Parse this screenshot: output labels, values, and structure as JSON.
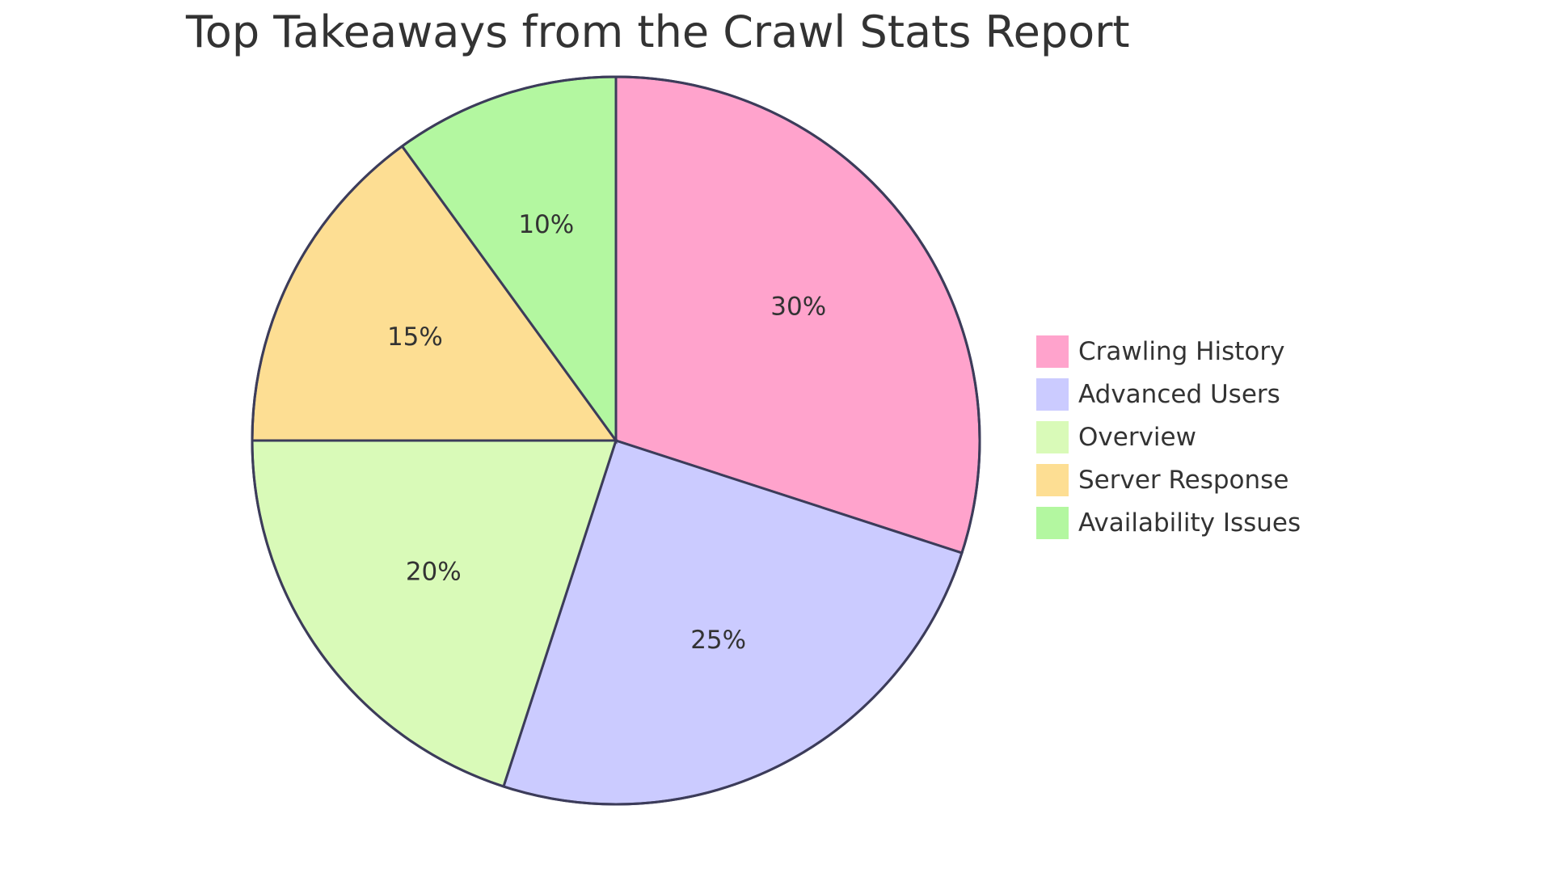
{
  "chart_data": {
    "type": "pie",
    "title": "Top Takeaways from the Crawl Stats Report",
    "legend_position": "right",
    "slices": [
      {
        "label": "Crawling History",
        "value": 30,
        "display": "30%",
        "color": "#ffa3cc"
      },
      {
        "label": "Advanced Users",
        "value": 25,
        "display": "25%",
        "color": "#cbcbff"
      },
      {
        "label": "Overview",
        "value": 20,
        "display": "20%",
        "color": "#d9fab8"
      },
      {
        "label": "Server Response",
        "value": 15,
        "display": "15%",
        "color": "#fdde93"
      },
      {
        "label": "Availability Issues",
        "value": 10,
        "display": "10%",
        "color": "#b3f7a0"
      }
    ],
    "stroke_color": "#3c3c5a"
  }
}
